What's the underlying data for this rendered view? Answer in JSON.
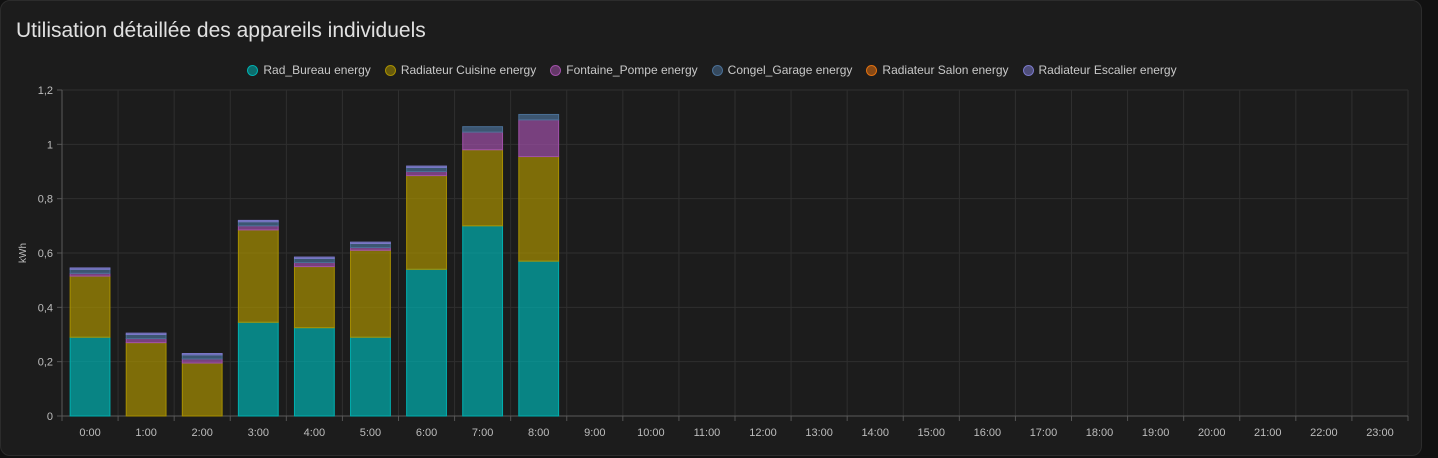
{
  "card": {
    "title": "Utilisation détaillée des appareils individuels"
  },
  "chart_data": {
    "type": "bar",
    "stacked": true,
    "ylabel": "kWh",
    "xlabel": "",
    "ylim": [
      0,
      1.2
    ],
    "yticks": [
      "0",
      "0,2",
      "0,4",
      "0,6",
      "0,8",
      "1",
      "1,2"
    ],
    "ytick_values": [
      0,
      0.2,
      0.4,
      0.6,
      0.8,
      1.0,
      1.2
    ],
    "grid": true,
    "legend_position": "top-center",
    "categories": [
      "0:00",
      "1:00",
      "2:00",
      "3:00",
      "4:00",
      "5:00",
      "6:00",
      "7:00",
      "8:00",
      "9:00",
      "10:00",
      "11:00",
      "12:00",
      "13:00",
      "14:00",
      "15:00",
      "16:00",
      "17:00",
      "18:00",
      "19:00",
      "20:00",
      "21:00",
      "22:00",
      "23:00"
    ],
    "series": [
      {
        "name": "Rad_Bureau energy",
        "color": "#00b0b0",
        "values": [
          0.29,
          0,
          0,
          0.345,
          0.325,
          0.29,
          0.54,
          0.7,
          0.57,
          0,
          0,
          0,
          0,
          0,
          0,
          0,
          0,
          0,
          0,
          0,
          0,
          0,
          0,
          0
        ]
      },
      {
        "name": "Radiateur Cuisine energy",
        "color": "#a89000",
        "values": [
          0.225,
          0.27,
          0.195,
          0.34,
          0.225,
          0.32,
          0.345,
          0.28,
          0.385,
          0,
          0,
          0,
          0,
          0,
          0,
          0,
          0,
          0,
          0,
          0,
          0,
          0,
          0,
          0
        ]
      },
      {
        "name": "Fontaine_Pompe energy",
        "color": "#a050a8",
        "values": [
          0.01,
          0.015,
          0.015,
          0.015,
          0.015,
          0.01,
          0.015,
          0.065,
          0.135,
          0,
          0,
          0,
          0,
          0,
          0,
          0,
          0,
          0,
          0,
          0,
          0,
          0,
          0,
          0
        ]
      },
      {
        "name": "Congel_Garage energy",
        "color": "#4a6f95",
        "values": [
          0.015,
          0.015,
          0.015,
          0.015,
          0.015,
          0.015,
          0.015,
          0.02,
          0.02,
          0,
          0,
          0,
          0,
          0,
          0,
          0,
          0,
          0,
          0,
          0,
          0,
          0,
          0,
          0
        ]
      },
      {
        "name": "Radiateur Salon energy",
        "color": "#e07010",
        "values": [
          0,
          0,
          0,
          0,
          0,
          0,
          0,
          0,
          0,
          0,
          0,
          0,
          0,
          0,
          0,
          0,
          0,
          0,
          0,
          0,
          0,
          0,
          0,
          0
        ]
      },
      {
        "name": "Radiateur Escalier energy",
        "color": "#7a78c8",
        "values": [
          0.005,
          0.005,
          0.005,
          0.005,
          0.005,
          0.005,
          0.005,
          0,
          0,
          0,
          0,
          0,
          0,
          0,
          0,
          0,
          0,
          0,
          0,
          0,
          0,
          0,
          0,
          0
        ]
      }
    ]
  }
}
